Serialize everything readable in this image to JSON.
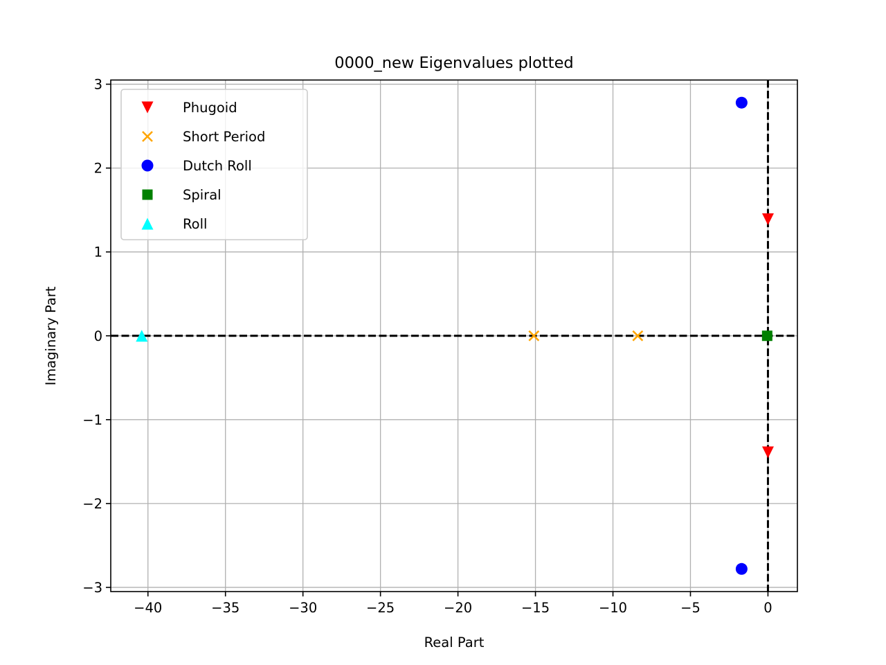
{
  "chart_data": {
    "type": "scatter",
    "title": "0000_new Eigenvalues plotted",
    "xlabel": "Real Part",
    "ylabel": "Imaginary Part",
    "xlim": [
      -42.4,
      1.9
    ],
    "ylim": [
      -3.05,
      3.05
    ],
    "xticks": [
      -40,
      -35,
      -30,
      -25,
      -20,
      -15,
      -10,
      -5,
      0
    ],
    "xtick_labels": [
      "−40",
      "−35",
      "−30",
      "−25",
      "−20",
      "−15",
      "−10",
      "−5",
      "0"
    ],
    "yticks": [
      -3,
      -2,
      -1,
      0,
      1,
      2,
      3
    ],
    "ytick_labels": [
      "−3",
      "−2",
      "−1",
      "0",
      "1",
      "2",
      "3"
    ],
    "grid": true,
    "reference_lines": [
      "x = 0",
      "y = 0"
    ],
    "legend_position": "upper-left",
    "series": [
      {
        "name": "Phugoid",
        "marker": "triangle-down",
        "color": "#ff0000",
        "points": [
          [
            0.0,
            1.39
          ],
          [
            0.0,
            -1.39
          ]
        ]
      },
      {
        "name": "Short Period",
        "marker": "x",
        "color": "#ffa500",
        "points": [
          [
            -15.1,
            0.0
          ],
          [
            -8.4,
            0.0
          ]
        ]
      },
      {
        "name": "Dutch Roll",
        "marker": "circle",
        "color": "#0000ff",
        "points": [
          [
            -1.7,
            2.78
          ],
          [
            -1.7,
            -2.78
          ]
        ]
      },
      {
        "name": "Spiral",
        "marker": "square",
        "color": "#008000",
        "points": [
          [
            -0.05,
            0.0
          ]
        ]
      },
      {
        "name": "Roll",
        "marker": "triangle-up",
        "color": "#00ffff",
        "points": [
          [
            -40.4,
            0.0
          ]
        ]
      }
    ]
  }
}
